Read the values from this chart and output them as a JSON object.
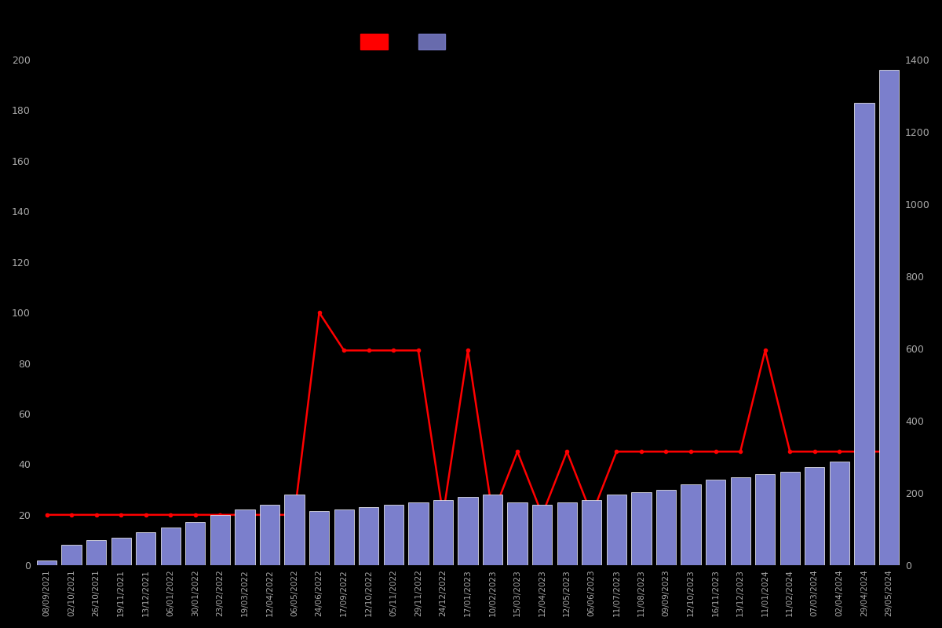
{
  "background_color": "#000000",
  "text_color": "#aaaaaa",
  "bar_color": "#7b7fcc",
  "bar_edge_color": "#ffffff",
  "line_color": "#ff0000",
  "line_marker": "o",
  "line_marker_size": 3,
  "line_width": 1.8,
  "left_ylim": [
    0,
    200
  ],
  "right_ylim": [
    0,
    1400
  ],
  "left_yticks": [
    0,
    20,
    40,
    60,
    80,
    100,
    120,
    140,
    160,
    180,
    200
  ],
  "right_yticks": [
    0,
    200,
    400,
    600,
    800,
    1000,
    1200,
    1400
  ],
  "dates": [
    "08/09/2021",
    "02/10/2021",
    "26/10/2021",
    "19/11/2021",
    "13/12/2021",
    "06/01/2022",
    "30/01/2022",
    "23/02/2022",
    "19/03/2022",
    "12/04/2022",
    "06/05/2022",
    "24/06/2022",
    "17/09/2022",
    "12/10/2022",
    "05/11/2022",
    "29/11/2022",
    "24/12/2022",
    "17/01/2023",
    "10/02/2023",
    "15/03/2023",
    "12/04/2023",
    "12/05/2023",
    "06/06/2023",
    "11/07/2023",
    "11/08/2023",
    "09/09/2023",
    "12/10/2023",
    "16/11/2023",
    "13/12/2023",
    "11/01/2024",
    "11/02/2024",
    "07/03/2024",
    "02/04/2024",
    "29/04/2024",
    "29/05/2024"
  ],
  "bar_values": [
    14,
    56,
    70,
    77,
    91,
    105,
    119,
    140,
    154,
    168,
    196,
    150,
    154,
    161,
    168,
    175,
    182,
    189,
    196,
    175,
    168,
    175,
    182,
    196,
    203,
    210,
    224,
    238,
    245,
    252,
    259,
    273,
    287,
    1280,
    1372
  ],
  "line_values": [
    20,
    20,
    20,
    20,
    20,
    20,
    20,
    20,
    20,
    20,
    20,
    100,
    85,
    85,
    85,
    85,
    20,
    85,
    20,
    45,
    20,
    45,
    20,
    45,
    45,
    45,
    45,
    45,
    45,
    85,
    45,
    45,
    45,
    45,
    45
  ]
}
